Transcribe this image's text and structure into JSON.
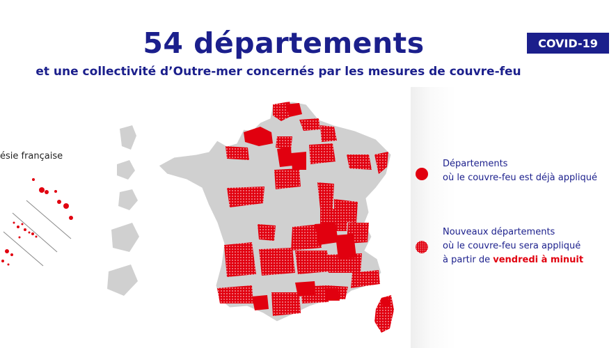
{
  "header": {
    "title": "54 départements",
    "subtitle": "et une collectivité d’Outre-mer concernés par les mesures de couvre-feu",
    "badge": "COVID-19"
  },
  "inset": {
    "label": "ésie française"
  },
  "legend": {
    "items": [
      {
        "line1": "Départements",
        "line2": "où le couvre-feu est déjà appliqué",
        "style": "solid"
      },
      {
        "line1": "Nouveaux départements",
        "line2": "où le couvre-feu sera appliqué",
        "line3_prefix": "à partir de ",
        "line3_highlight": "vendredi à minuit",
        "style": "dotted"
      }
    ]
  },
  "colors": {
    "brand_blue": "#1b1f8c",
    "curfew_red": "#e1000f",
    "land_grey": "#d0d0d0"
  }
}
